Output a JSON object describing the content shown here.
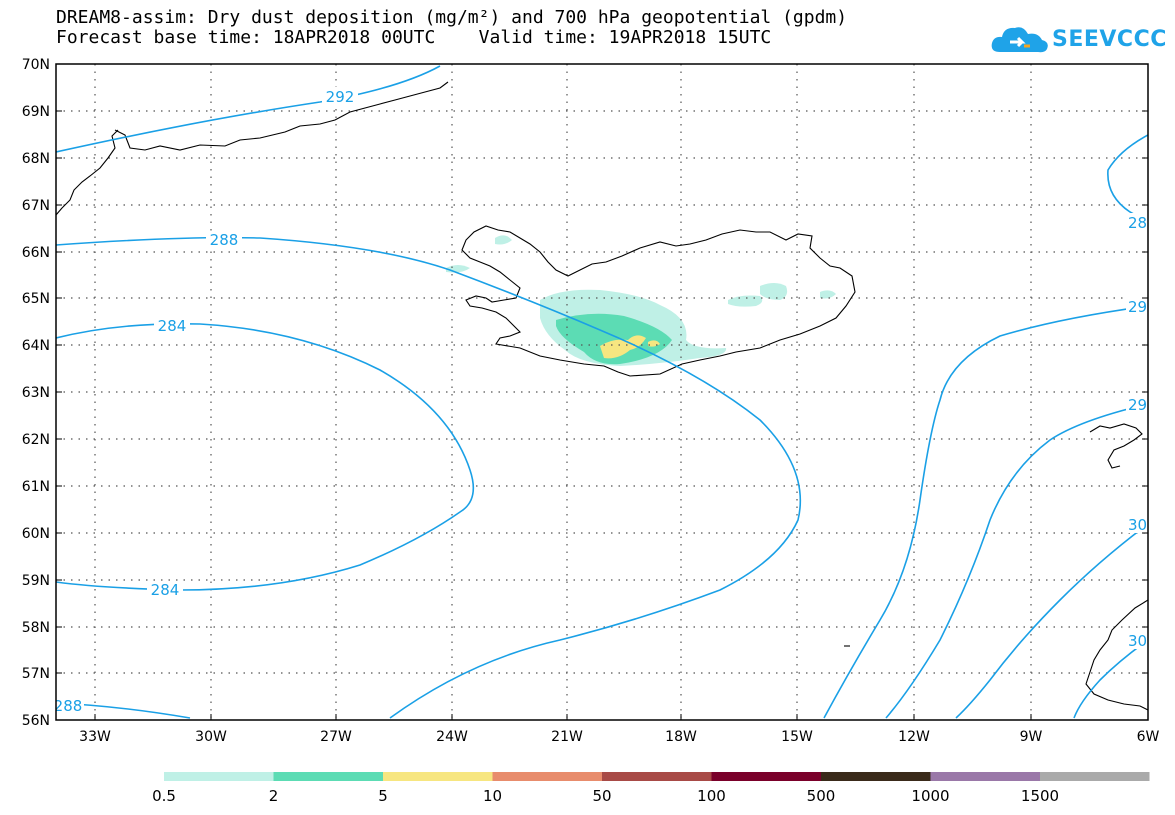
{
  "header": {
    "title_line1": "DREAM8-assim: Dry dust deposition (mg/m²) and 700 hPa geopotential (gpdm)",
    "title_line2": "Forecast base time: 18APR2018 00UTC    Valid time: 19APR2018 15UTC",
    "logo_text": "SEEVCCC"
  },
  "colors": {
    "contour": "#1aa0e6",
    "coast": "#000000",
    "grid": "#555555",
    "dust": [
      "#bff0e6",
      "#5cdcb4",
      "#f7e680",
      "#e88c6c",
      "#a84a46",
      "#7a002a",
      "#3a2a1a",
      "#9a78a8",
      "#aaaaaa"
    ]
  },
  "map": {
    "lat_labels": [
      "70N",
      "69N",
      "68N",
      "67N",
      "66N",
      "65N",
      "64N",
      "63N",
      "62N",
      "61N",
      "60N",
      "59N",
      "58N",
      "57N",
      "56N"
    ],
    "lon_labels": [
      "33W",
      "30W",
      "27W",
      "24W",
      "21W",
      "18W",
      "15W",
      "12W",
      "9W",
      "6W"
    ],
    "contours": [
      {
        "value": "292",
        "label_positions": [
          [
            340,
            97
          ]
        ]
      },
      {
        "value": "288",
        "label_positions": [
          [
            224,
            240
          ],
          [
            68,
            706
          ]
        ]
      },
      {
        "value": "284",
        "label_positions": [
          [
            172,
            326
          ],
          [
            165,
            590
          ]
        ]
      },
      {
        "value": "28",
        "label_positions": [
          [
            1138,
            222
          ]
        ]
      },
      {
        "value": "29",
        "label_positions": [
          [
            1138,
            306
          ]
        ]
      },
      {
        "value": "29",
        "label_positions": [
          [
            1138,
            404
          ]
        ]
      },
      {
        "value": "30",
        "label_positions": [
          [
            1138,
            524
          ]
        ]
      },
      {
        "value": "30",
        "label_positions": [
          [
            1138,
            640
          ]
        ]
      }
    ]
  },
  "legend": {
    "thresholds": [
      "0.5",
      "2",
      "5",
      "10",
      "50",
      "100",
      "500",
      "1000",
      "1500"
    ]
  }
}
